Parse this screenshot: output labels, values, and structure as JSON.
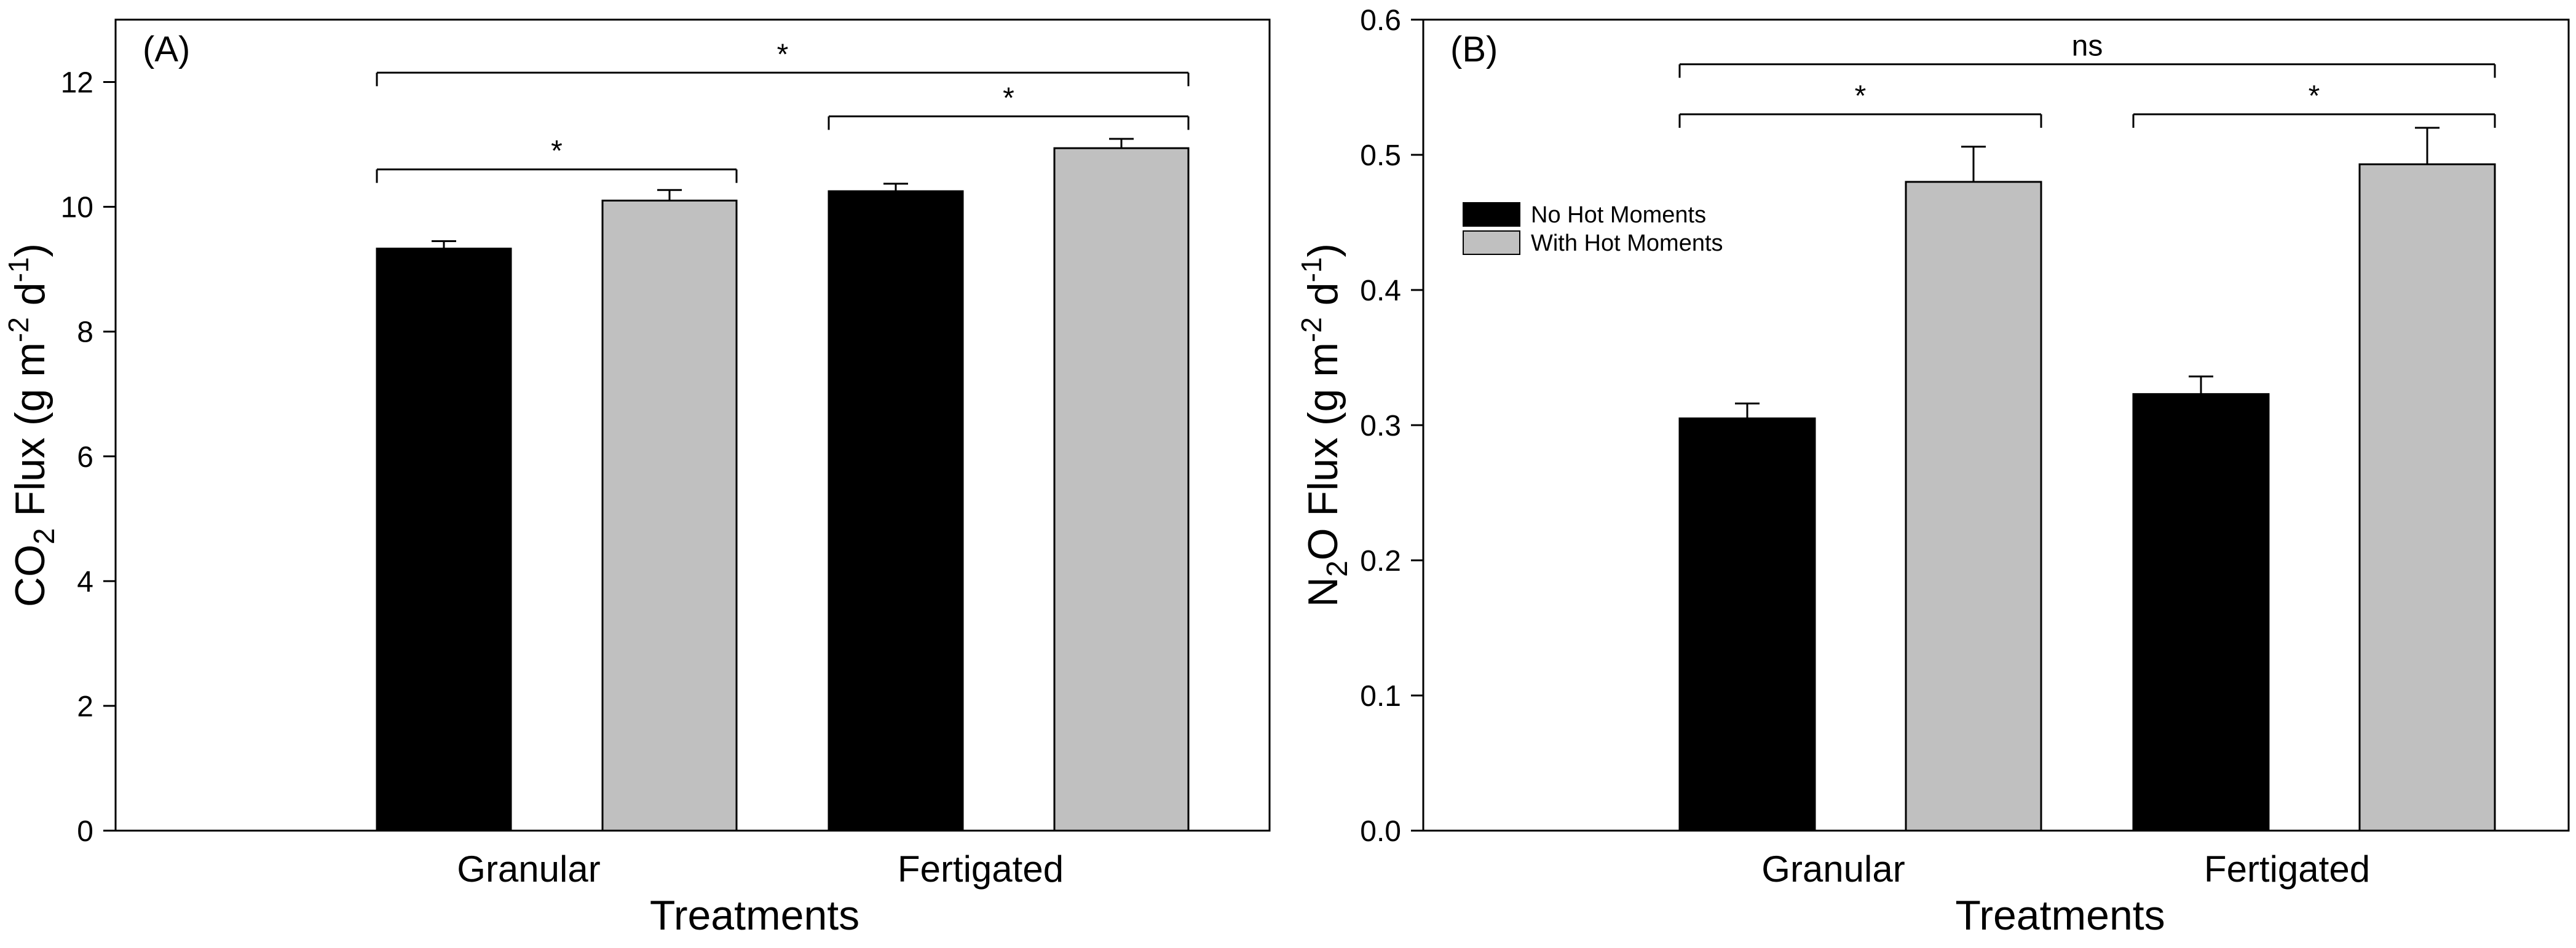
{
  "chart_data": [
    {
      "type": "bar",
      "panel_label": "(A)",
      "categories": [
        "Granular",
        "Fertigated"
      ],
      "series": [
        {
          "name": "No Hot Moments",
          "color": "#000000",
          "values": [
            9.33,
            10.25
          ],
          "errors": [
            0.12,
            0.12
          ]
        },
        {
          "name": "With Hot Moments",
          "color": "#c0c0c0",
          "values": [
            10.1,
            10.94
          ],
          "errors": [
            0.17,
            0.15
          ]
        }
      ],
      "xlabel": "Treatments",
      "ylabel": {
        "prefix": "CO",
        "sub": "2",
        "mid": " Flux (g m",
        "sup1": "-2",
        "mid2": " d",
        "sup2": "-1",
        "suffix": ")"
      },
      "ylim": [
        0,
        13
      ],
      "yticks": [
        0,
        2,
        4,
        6,
        8,
        10,
        12
      ],
      "ytick_labels": [
        "0",
        "2",
        "4",
        "6",
        "8",
        "10",
        "12"
      ],
      "legend": null,
      "significance": [
        {
          "from": [
            0,
            0
          ],
          "to": [
            0,
            1
          ],
          "y": 10.6,
          "label": "*"
        },
        {
          "from": [
            1,
            0
          ],
          "to": [
            1,
            1
          ],
          "y": 11.45,
          "label": "*"
        },
        {
          "from": [
            0,
            0
          ],
          "to": [
            1,
            1
          ],
          "y": 12.15,
          "label": "*"
        }
      ]
    },
    {
      "type": "bar",
      "panel_label": "(B)",
      "categories": [
        "Granular",
        "Fertigated"
      ],
      "series": [
        {
          "name": "No Hot Moments",
          "color": "#000000",
          "values": [
            0.305,
            0.323
          ],
          "errors": [
            0.011,
            0.013
          ]
        },
        {
          "name": "With Hot Moments",
          "color": "#c0c0c0",
          "values": [
            0.48,
            0.493
          ],
          "errors": [
            0.026,
            0.027
          ]
        }
      ],
      "xlabel": "Treatments",
      "ylabel": {
        "prefix": "N",
        "sub": "2",
        "mid": "O Flux (g m",
        "sup1": "-2",
        "mid2": " d",
        "sup2": "-1",
        "suffix": ")"
      },
      "ylim": [
        0,
        0.6
      ],
      "yticks": [
        0,
        0.1,
        0.2,
        0.3,
        0.4,
        0.5,
        0.6
      ],
      "ytick_labels": [
        "0.0",
        "0.1",
        "0.2",
        "0.3",
        "0.4",
        "0.5",
        "0.6"
      ],
      "legend": {
        "position": "left",
        "entries": [
          "No Hot Moments",
          "With Hot Moments"
        ]
      },
      "significance": [
        {
          "from": [
            0,
            0
          ],
          "to": [
            0,
            1
          ],
          "y": 0.53,
          "label": "*"
        },
        {
          "from": [
            1,
            0
          ],
          "to": [
            1,
            1
          ],
          "y": 0.53,
          "label": "*"
        },
        {
          "from": [
            0,
            0
          ],
          "to": [
            1,
            1
          ],
          "y": 0.567,
          "label": "ns"
        }
      ]
    }
  ]
}
